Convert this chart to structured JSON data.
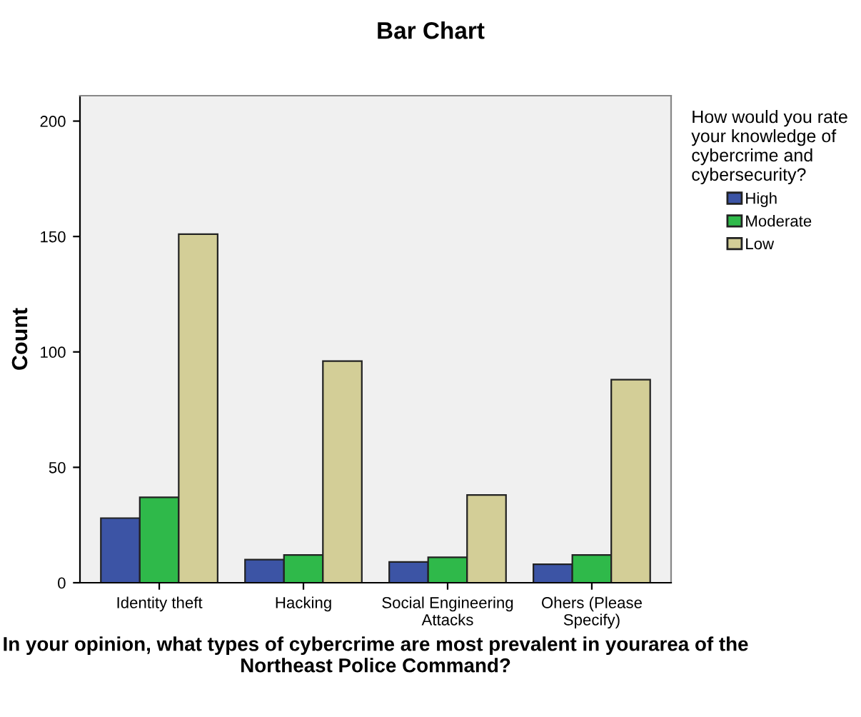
{
  "chart_data": {
    "type": "bar",
    "title": "Bar Chart",
    "xlabel": "In your opinion, what types of cybercrime are most prevalent in yourarea of the Northeast Police Command?",
    "ylabel": "Count",
    "legend_title": "How would you rate\nyour knowledge of\ncybercrime and\ncybersecurity?",
    "categories": [
      "Identity theft",
      "Hacking",
      "Social Engineering\nAttacks",
      "Ohers (Please\nSpecify)"
    ],
    "series": [
      {
        "name": "High",
        "color": "#3c54a5",
        "values": [
          28,
          10,
          9,
          8
        ]
      },
      {
        "name": "Moderate",
        "color": "#2fb94a",
        "values": [
          37,
          12,
          11,
          12
        ]
      },
      {
        "name": "Low",
        "color": "#d3ce97",
        "values": [
          151,
          96,
          38,
          88
        ]
      }
    ],
    "ylim": [
      0,
      211
    ],
    "yticks": [
      0,
      50,
      100,
      150,
      200
    ],
    "grid": false,
    "legend": "right"
  }
}
